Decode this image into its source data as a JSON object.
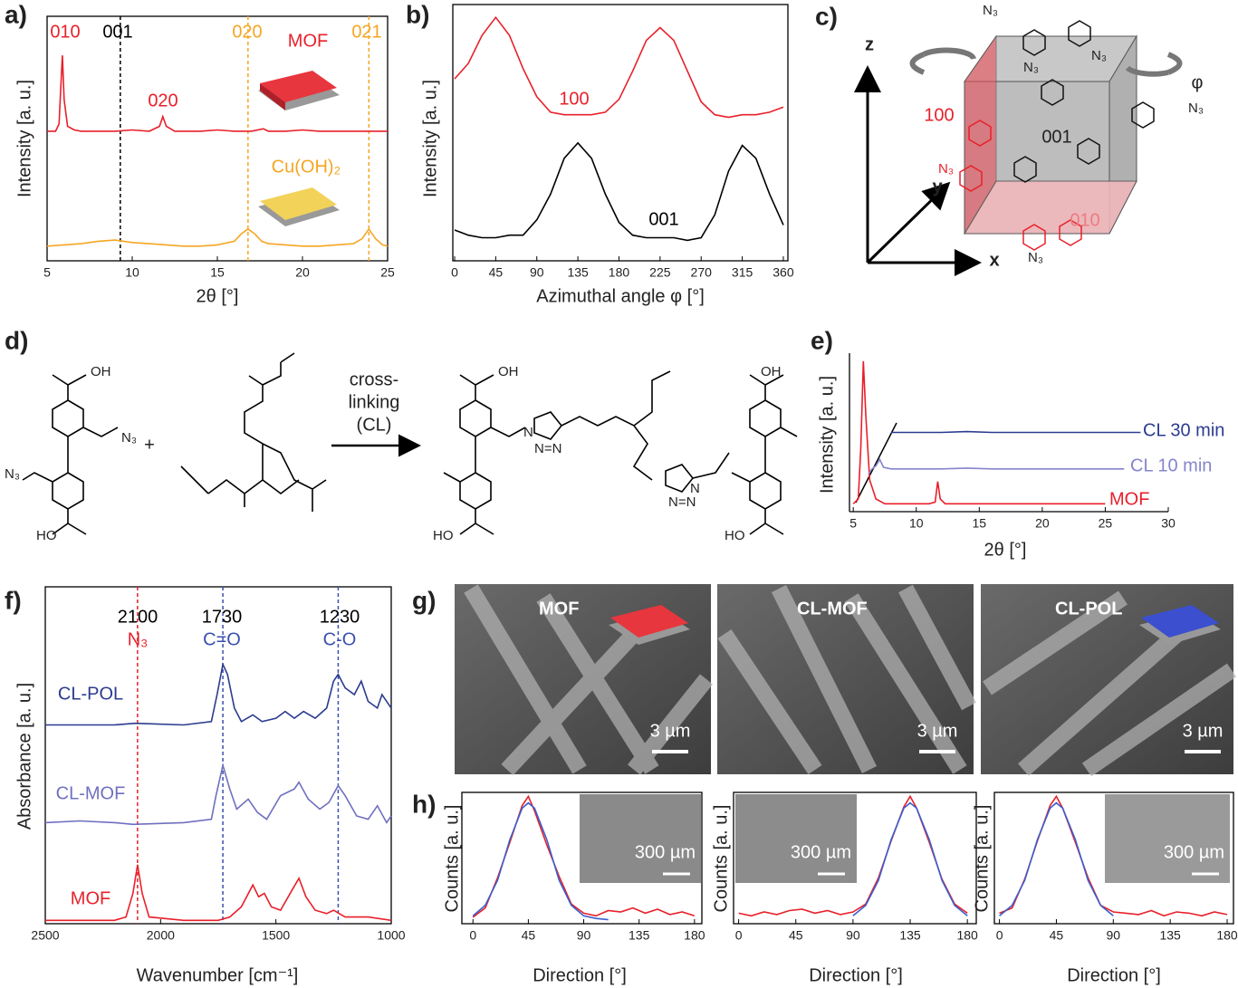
{
  "chart_data": [
    {
      "type": "line",
      "label": "a)",
      "x_label": "2θ [°]",
      "y_label": "Intensity [a. u.]",
      "xlim": [
        5,
        25
      ],
      "ylim": [
        0,
        100
      ],
      "xticks": [
        5,
        10,
        15,
        20,
        25
      ],
      "frame": "box",
      "series": [
        {
          "name": "MOF",
          "color": "#e8202a",
          "x": [
            5,
            5.5,
            5.7,
            5.8,
            5.9,
            6.0,
            6.2,
            6.6,
            7,
            8,
            9,
            10,
            11,
            11.6,
            11.8,
            12.0,
            12.5,
            13,
            14,
            15,
            16,
            17,
            17.7,
            18,
            19,
            20,
            21,
            22,
            23,
            24,
            25
          ],
          "values": [
            53,
            53,
            56,
            70,
            84,
            66,
            55,
            53.5,
            53,
            53,
            53,
            53.5,
            53,
            55,
            59,
            55,
            53,
            53,
            53,
            53.5,
            53,
            53,
            54,
            53,
            53,
            53.5,
            53,
            53,
            53,
            53,
            53
          ]
        },
        {
          "name": "Cu(OH)₂",
          "color": "#f5a623",
          "x": [
            5,
            6,
            7,
            8,
            9,
            10,
            11,
            12,
            13,
            14,
            15,
            16,
            16.4,
            16.8,
            17.2,
            17.6,
            18,
            19,
            20,
            21,
            22,
            23,
            23.5,
            23.9,
            24.3,
            24.7,
            25
          ],
          "values": [
            6,
            6.5,
            7,
            8,
            8.5,
            7.5,
            7,
            6.5,
            6,
            6,
            6.5,
            8,
            11,
            13,
            11,
            8,
            7,
            6.5,
            6,
            6,
            6.5,
            7,
            9,
            13,
            9,
            6.5,
            6
          ]
        }
      ],
      "vlines": [
        {
          "x": 9.3,
          "color": "#000000"
        },
        {
          "x": 16.8,
          "color": "#f5a623"
        },
        {
          "x": 23.9,
          "color": "#f5a623"
        }
      ],
      "annotations": [
        {
          "text": "010",
          "color": "#e8202a"
        },
        {
          "text": "001",
          "color": "#000000"
        },
        {
          "text": "020",
          "color": "#e8202a"
        },
        {
          "text": "020",
          "color": "#f5a623"
        },
        {
          "text": "021",
          "color": "#f5a623"
        }
      ]
    },
    {
      "type": "line",
      "label": "b)",
      "x_label": "Azimuthal angle φ [°]",
      "y_label": "Intensity [a. u.]",
      "xlim": [
        -2,
        365
      ],
      "ylim": [
        0,
        100
      ],
      "xticks": [
        0,
        45,
        90,
        135,
        180,
        225,
        270,
        315,
        360
      ],
      "frame": "box",
      "series": [
        {
          "name": "100",
          "color": "#e8202a",
          "x": [
            0,
            15,
            30,
            45,
            60,
            75,
            90,
            105,
            120,
            135,
            150,
            165,
            180,
            195,
            210,
            225,
            240,
            255,
            270,
            285,
            300,
            315,
            330,
            345,
            360
          ],
          "values": [
            71,
            77,
            88,
            95,
            88,
            75,
            64,
            58,
            57,
            57,
            57,
            58,
            63,
            74,
            86,
            91,
            86,
            74,
            62,
            57,
            56,
            57,
            57,
            58,
            60
          ]
        },
        {
          "name": "001",
          "color": "#000000",
          "x": [
            0,
            15,
            30,
            45,
            60,
            75,
            90,
            105,
            120,
            135,
            150,
            165,
            180,
            195,
            210,
            225,
            240,
            255,
            270,
            285,
            300,
            315,
            330,
            345,
            360
          ],
          "values": [
            12,
            10,
            9,
            9,
            10,
            10,
            16,
            26,
            40,
            46,
            40,
            26,
            15,
            10,
            9,
            9,
            9,
            8,
            9,
            18,
            35,
            45,
            40,
            26,
            14
          ]
        }
      ]
    },
    {
      "type": "line",
      "label": "e)",
      "x_label": "2θ [°]",
      "y_label": "Intensity [a. u.]",
      "xlim": [
        4.7,
        30
      ],
      "ylim": [
        0,
        100
      ],
      "xticks": [
        5,
        10,
        15,
        20,
        25,
        30
      ],
      "frame": "axes",
      "series": [
        {
          "name": "MOF",
          "color": "#e8202a",
          "x": [
            5,
            5.4,
            5.6,
            5.8,
            6.0,
            6.3,
            6.8,
            7.5,
            9,
            10,
            11,
            11.5,
            11.7,
            11.9,
            12.3,
            14,
            16,
            18,
            20,
            22,
            25
          ],
          "values": [
            5,
            8,
            40,
            95,
            60,
            20,
            8,
            5,
            5,
            5,
            5,
            6,
            19,
            8,
            5,
            5,
            5,
            5,
            5,
            5,
            5
          ]
        },
        {
          "name": "CL 10 min",
          "color": "#8585cc",
          "x": [
            6.2,
            6.5,
            6.8,
            7.1,
            7.4,
            8,
            10,
            12,
            14,
            16,
            18,
            20,
            22,
            24,
            26.5
          ],
          "values": [
            24,
            27,
            29,
            33,
            28,
            27,
            27,
            27,
            27.5,
            27,
            27,
            27,
            27,
            27,
            27
          ]
        },
        {
          "name": "CL 30 min",
          "color": "#2b3b8f",
          "x": [
            8,
            8.5,
            10,
            12,
            14,
            16,
            18,
            20,
            22,
            24,
            26,
            27.8
          ],
          "values": [
            50,
            50,
            50,
            50,
            50.5,
            50,
            50,
            50,
            50,
            50,
            50,
            50
          ]
        }
      ]
    },
    {
      "type": "line",
      "label": "f)",
      "x_label": "Wavenumber [cm⁻¹]",
      "y_label": "Absorbance [a. u.]",
      "xlim": [
        2500,
        1000
      ],
      "ylim": [
        0,
        100
      ],
      "xticks": [
        2500,
        2000,
        1500,
        1000
      ],
      "frame": "box",
      "series": [
        {
          "name": "MOF",
          "color": "#e8202a",
          "x": [
            2500,
            2200,
            2150,
            2120,
            2100,
            2080,
            2050,
            1900,
            1750,
            1700,
            1650,
            1600,
            1575,
            1550,
            1520,
            1480,
            1430,
            1400,
            1370,
            1330,
            1280,
            1250,
            1200,
            1100,
            1000
          ],
          "values": [
            1,
            1,
            2,
            9,
            17.5,
            9,
            2,
            1,
            1,
            2,
            5,
            11.5,
            8,
            9,
            5,
            4,
            10,
            13.5,
            8,
            4,
            3,
            4,
            2,
            2,
            1
          ]
        },
        {
          "name": "CL-MOF",
          "color": "#6f6fc0",
          "x": [
            2500,
            2350,
            2200,
            2120,
            1900,
            1780,
            1760,
            1730,
            1700,
            1670,
            1620,
            1580,
            1540,
            1480,
            1420,
            1400,
            1360,
            1310,
            1270,
            1230,
            1200,
            1150,
            1100,
            1060,
            1020,
            1000
          ],
          "values": [
            30,
            30.5,
            30,
            29.5,
            30,
            31,
            38,
            47,
            40,
            34,
            37,
            33,
            31,
            38,
            40,
            42,
            37,
            34,
            36,
            41,
            38,
            32,
            31,
            35,
            30,
            32
          ]
        },
        {
          "name": "CL-POL",
          "color": "#2b3b8f",
          "x": [
            2500,
            2300,
            2200,
            2110,
            1900,
            1780,
            1755,
            1730,
            1710,
            1680,
            1650,
            1600,
            1560,
            1500,
            1460,
            1420,
            1380,
            1330,
            1280,
            1250,
            1230,
            1200,
            1160,
            1130,
            1100,
            1060,
            1040,
            1000
          ],
          "values": [
            59,
            59,
            59,
            59.5,
            59,
            60,
            68,
            77,
            74,
            64,
            60,
            62,
            60,
            61,
            63,
            61,
            63,
            61,
            64,
            72,
            74,
            70,
            68,
            72,
            66,
            64,
            68,
            64
          ]
        }
      ],
      "vlines": [
        {
          "x": 2100,
          "color": "#e8202a"
        },
        {
          "x": 1730,
          "color": "#3a4fb0"
        },
        {
          "x": 1230,
          "color": "#3a4fb0"
        }
      ],
      "annotations": [
        {
          "text": "2100",
          "color": "#000000"
        },
        {
          "text": "N₃",
          "color": "#e8202a"
        },
        {
          "text": "1730",
          "color": "#000000"
        },
        {
          "text": "C=O",
          "color": "#3a4fb0"
        },
        {
          "text": "1230",
          "color": "#000000"
        },
        {
          "text": "C-O",
          "color": "#3a4fb0"
        }
      ]
    },
    {
      "type": "line",
      "label": "h)",
      "x_label": "Direction [°]",
      "y_label": "Counts [a. u.]",
      "xlim": [
        -9,
        186
      ],
      "ylim": [
        0,
        100
      ],
      "xticks": [
        0,
        45,
        90,
        135,
        180
      ],
      "frame": "box",
      "inset_label": "300 µm",
      "series": [
        {
          "color": "#e8202a",
          "x": [
            0,
            10,
            20,
            30,
            40,
            45,
            50,
            60,
            70,
            80,
            90,
            100,
            110,
            120,
            130,
            140,
            150,
            160,
            170,
            180
          ],
          "values": [
            5,
            12,
            35,
            62,
            90,
            97,
            86,
            60,
            36,
            15,
            8,
            6,
            10,
            9,
            12,
            8,
            11,
            7,
            9,
            6
          ]
        },
        {
          "color": "#3a5fcd",
          "x": [
            0,
            10,
            20,
            30,
            40,
            45,
            50,
            60,
            70,
            80,
            90,
            100,
            110
          ],
          "values": [
            6,
            14,
            33,
            64,
            88,
            92,
            88,
            64,
            33,
            14,
            6,
            4,
            3
          ]
        }
      ]
    },
    {
      "type": "line",
      "x_label": "Direction [°]",
      "y_label": "Counts [a. u.]",
      "xlim": [
        -4,
        187
      ],
      "ylim": [
        0,
        100
      ],
      "xticks": [
        0,
        45,
        90,
        135,
        180
      ],
      "frame": "box",
      "inset_label": "300 µm",
      "series": [
        {
          "color": "#e8202a",
          "x": [
            0,
            10,
            20,
            30,
            40,
            50,
            60,
            70,
            80,
            90,
            100,
            110,
            120,
            130,
            135,
            140,
            150,
            160,
            170,
            180
          ],
          "values": [
            8,
            6,
            9,
            7,
            10,
            11,
            8,
            10,
            7,
            9,
            15,
            35,
            63,
            89,
            97,
            88,
            62,
            34,
            15,
            8
          ]
        },
        {
          "color": "#3a5fcd",
          "x": [
            90,
            100,
            110,
            120,
            130,
            135,
            140,
            150,
            160,
            170,
            180
          ],
          "values": [
            6,
            14,
            33,
            64,
            88,
            92,
            88,
            64,
            33,
            14,
            6
          ]
        }
      ]
    },
    {
      "type": "line",
      "x_label": "Direction [°]",
      "y_label": "Counts [a. u.]",
      "xlim": [
        -4,
        185
      ],
      "ylim": [
        0,
        100
      ],
      "xticks": [
        0,
        45,
        90,
        135,
        180
      ],
      "frame": "box",
      "inset_label": "300 µm",
      "series": [
        {
          "color": "#e8202a",
          "x": [
            0,
            10,
            20,
            30,
            40,
            45,
            50,
            60,
            70,
            80,
            90,
            100,
            110,
            120,
            130,
            140,
            150,
            160,
            170,
            180
          ],
          "values": [
            8,
            12,
            34,
            63,
            90,
            97,
            88,
            62,
            35,
            14,
            9,
            8,
            7,
            10,
            6,
            9,
            8,
            6,
            9,
            7
          ]
        },
        {
          "color": "#3a5fcd",
          "x": [
            0,
            10,
            20,
            30,
            40,
            45,
            50,
            60,
            70,
            80,
            90
          ],
          "values": [
            6,
            14,
            33,
            64,
            88,
            92,
            88,
            64,
            33,
            14,
            6
          ]
        }
      ]
    }
  ],
  "panel_c": {
    "label": "c)",
    "axes": [
      "z",
      "y",
      "x"
    ],
    "rotation": "φ",
    "faces": [
      "100",
      "001",
      "010"
    ],
    "atom_labels": [
      "N₃",
      "N₃",
      "N₃",
      "N₃",
      "N₃",
      "N₃"
    ]
  },
  "panel_d": {
    "label": "d)",
    "reactant_1": [
      "OH",
      "N₃",
      "N₃",
      "HO"
    ],
    "plus": "+",
    "arrow": [
      "cross-",
      "linking",
      "(CL)"
    ],
    "product": [
      "OH",
      "HO",
      "N",
      "N=N",
      "N",
      "N=N",
      "OH",
      "HO"
    ]
  },
  "panel_g": {
    "label": "g)",
    "images": [
      {
        "title": "MOF",
        "scale": "3 µm"
      },
      {
        "title": "CL-MOF",
        "scale": "3 µm"
      },
      {
        "title": "CL-POL",
        "scale": "3 µm"
      }
    ]
  }
}
